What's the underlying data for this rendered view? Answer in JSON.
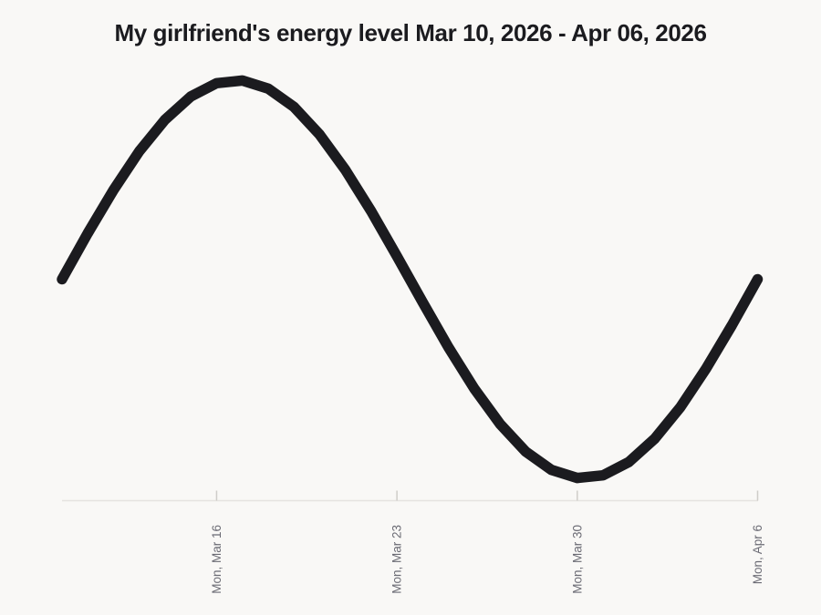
{
  "page": {
    "background": "#f9f8f6"
  },
  "chart_data": {
    "type": "line",
    "title": "My girlfriend's energy level Mar 10, 2026 - Apr 06, 2026",
    "series_name": "energy level",
    "x": [
      "Mar 10",
      "Mar 11",
      "Mar 12",
      "Mar 13",
      "Mar 14",
      "Mar 15",
      "Mar 16",
      "Mar 17",
      "Mar 18",
      "Mar 19",
      "Mar 20",
      "Mar 21",
      "Mar 22",
      "Mar 23",
      "Mar 24",
      "Mar 25",
      "Mar 26",
      "Mar 27",
      "Mar 28",
      "Mar 29",
      "Mar 30",
      "Mar 31",
      "Apr 1",
      "Apr 2",
      "Apr 3",
      "Apr 4",
      "Apr 5",
      "Apr 6"
    ],
    "values": [
      0.0,
      0.231,
      0.449,
      0.643,
      0.802,
      0.918,
      0.985,
      0.998,
      0.958,
      0.866,
      0.727,
      0.549,
      0.342,
      0.116,
      -0.116,
      -0.342,
      -0.549,
      -0.727,
      -0.866,
      -0.958,
      -0.998,
      -0.985,
      -0.918,
      -0.802,
      -0.643,
      -0.449,
      -0.231,
      0.0
    ],
    "x_tick_labels": [
      "Mon, Mar 16",
      "Mon, Mar 23",
      "Mon, Mar 30",
      "Mon, Apr 6"
    ],
    "x_tick_indices": [
      6,
      13,
      20,
      27
    ],
    "xlabel": "",
    "ylabel": "",
    "ylim": [
      -1.11,
      1.11
    ],
    "grid": false,
    "legend": "none",
    "line_color": "#1b1b1f",
    "axis_color": "#e5e3e0",
    "tick_color": "#cfcdc9",
    "tick_label_color": "#6b6b74",
    "title_color": "#1b1b1f"
  }
}
